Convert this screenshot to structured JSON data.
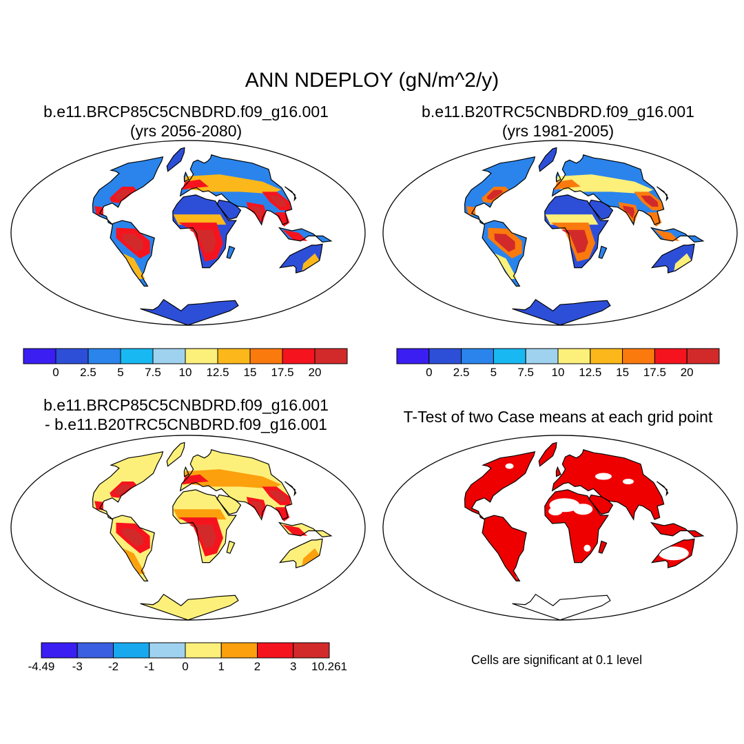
{
  "figure": {
    "title": "ANN NDEPLOY (gN/m^2/y)",
    "land_outline_color": "#000000"
  },
  "panels": [
    {
      "id": "future",
      "title_line1": "b.e11.BRCP85C5CNBDRD.f09_g16.001",
      "title_line2": "(yrs 2056-2080)",
      "colorbar": {
        "colors": [
          "#3a1ef2",
          "#2d4fd8",
          "#2a84ec",
          "#18b8f2",
          "#9fd2ef",
          "#fdf07a",
          "#fcb81a",
          "#fa7a0e",
          "#f5141e",
          "#d22a2a"
        ],
        "labels": [
          "0",
          "2.5",
          "5",
          "7.5",
          "10",
          "12.5",
          "15",
          "17.5",
          "20"
        ]
      }
    },
    {
      "id": "historical",
      "title_line1": "b.e11.B20TRC5CNBDRD.f09_g16.001",
      "title_line2": "(yrs 1981-2005)",
      "colorbar": {
        "colors": [
          "#3a1ef2",
          "#2d4fd8",
          "#2a84ec",
          "#18b8f2",
          "#9fd2ef",
          "#fdf07a",
          "#fcb81a",
          "#fa7a0e",
          "#f5141e",
          "#d22a2a"
        ],
        "labels": [
          "0",
          "2.5",
          "5",
          "7.5",
          "10",
          "12.5",
          "15",
          "17.5",
          "20"
        ]
      }
    },
    {
      "id": "difference",
      "title_line1": "b.e11.BRCP85C5CNBDRD.f09_g16.001",
      "title_line2": "- b.e11.B20TRC5CNBDRD.f09_g16.001",
      "colorbar": {
        "colors": [
          "#3a1ef2",
          "#3a5fe0",
          "#18a8ee",
          "#9fd2ef",
          "#fdf07a",
          "#fca00e",
          "#f5141e",
          "#d22a2a"
        ],
        "labels": [
          "-4.49",
          "-3",
          "-2",
          "-1",
          "0",
          "1",
          "2",
          "3",
          "10.261"
        ]
      }
    },
    {
      "id": "ttest",
      "title_line1": "T-Test of two Case means at each grid point",
      "note": "Cells are significant at 0.1 level",
      "significant_color": "#ee0000"
    }
  ]
}
